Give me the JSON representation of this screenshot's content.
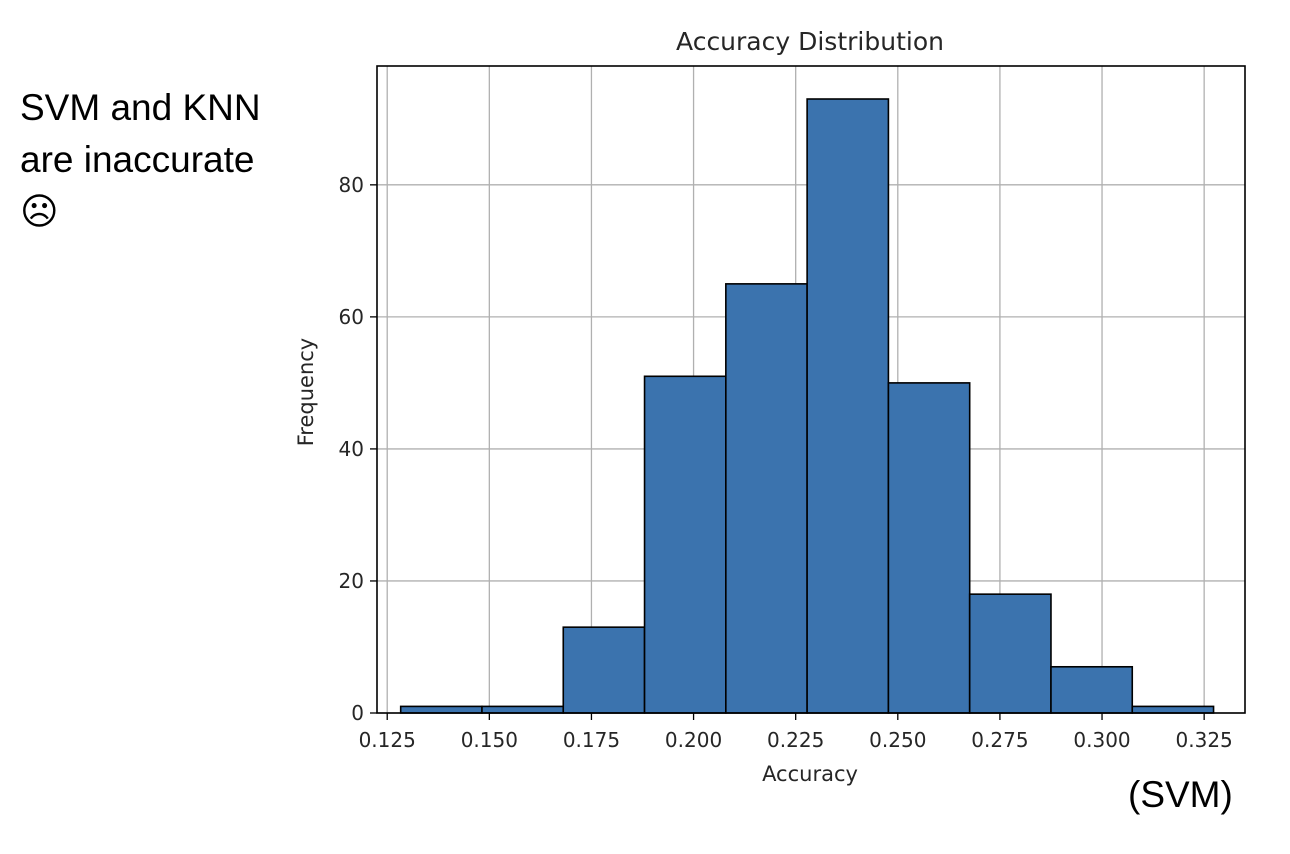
{
  "note": {
    "line1": "SVM and KNN",
    "line2": "are inaccurate",
    "line3": "☹"
  },
  "footer_label": "(SVM)",
  "chart_data": {
    "type": "bar",
    "title": "Accuracy Distribution",
    "xlabel": "Accuracy",
    "ylabel": "Frequency",
    "bin_edges": [
      0.1283,
      0.1482,
      0.1681,
      0.188,
      0.2079,
      0.2278,
      0.2477,
      0.2676,
      0.2875,
      0.3074,
      0.3273
    ],
    "values": [
      1,
      1,
      13,
      51,
      65,
      93,
      50,
      18,
      7,
      1
    ],
    "xlim": [
      0.1225,
      0.335
    ],
    "ylim": [
      0,
      98
    ],
    "xticks": [
      0.125,
      0.15,
      0.175,
      0.2,
      0.225,
      0.25,
      0.275,
      0.3,
      0.325
    ],
    "xtick_labels": [
      "0.125",
      "0.150",
      "0.175",
      "0.200",
      "0.225",
      "0.250",
      "0.275",
      "0.300",
      "0.325"
    ],
    "yticks": [
      0,
      20,
      40,
      60,
      80
    ],
    "ytick_labels": [
      "0",
      "20",
      "40",
      "60",
      "80"
    ],
    "grid": true,
    "bar_color": "#3b73ae",
    "edge_color": "#000000"
  }
}
